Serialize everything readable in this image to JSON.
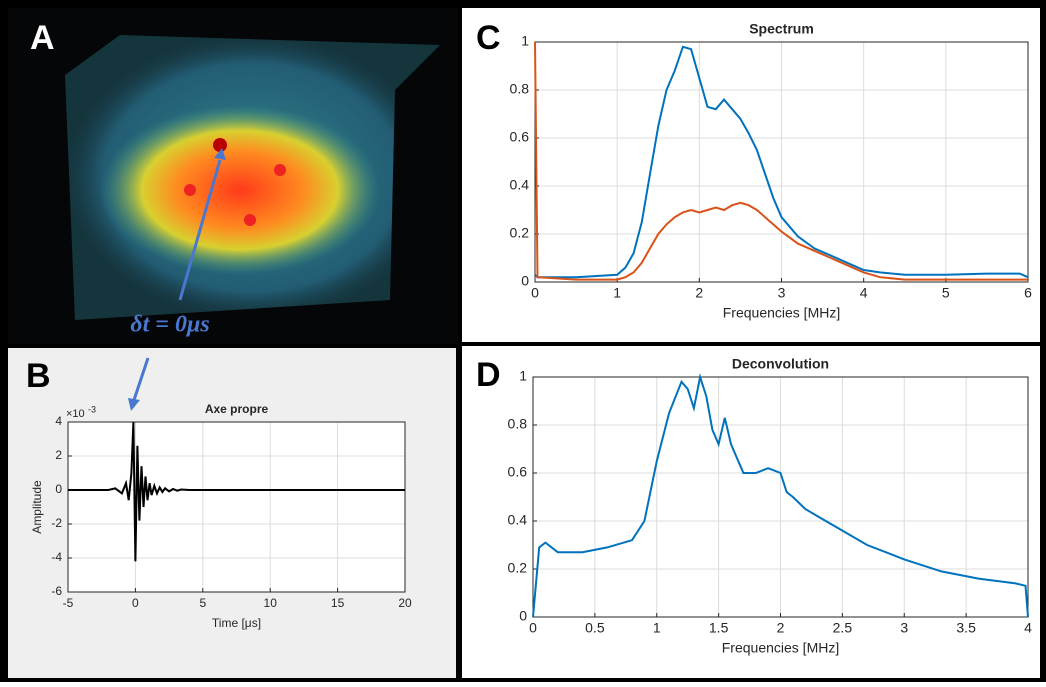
{
  "image_panel": {
    "label": "A",
    "annotation": "δt = 0μs"
  },
  "chart_data": [
    {
      "type": "line",
      "panel_label": "B",
      "title": "Axe propre",
      "x_label": "Time [μs]",
      "y_label": "Amplitude",
      "y_multiplier": {
        "base": "×10",
        "exponent": "-3"
      },
      "xlim": [
        -5,
        20
      ],
      "xticks": [
        -5,
        0,
        5,
        10,
        15,
        20
      ],
      "ylim": [
        -6,
        4
      ],
      "yticks": [
        -6,
        -4,
        -2,
        0,
        2,
        4
      ],
      "grid": true,
      "x": [
        -5,
        -2,
        -1.5,
        -1,
        -0.7,
        -0.5,
        -0.3,
        -0.15,
        0,
        0.15,
        0.3,
        0.45,
        0.6,
        0.75,
        0.9,
        1.05,
        1.2,
        1.4,
        1.6,
        1.8,
        2.0,
        2.2,
        2.5,
        2.8,
        3.1,
        3.4,
        4,
        5,
        20
      ],
      "series": [
        {
          "color": "#000000",
          "values": [
            0,
            0,
            0.1,
            -0.2,
            0.4,
            -0.6,
            1.0,
            4.0,
            -4.2,
            2.6,
            -1.8,
            1.4,
            -1.0,
            0.8,
            -0.6,
            0.4,
            -0.3,
            0.25,
            -0.2,
            0.15,
            -0.12,
            0.1,
            -0.08,
            0.06,
            -0.04,
            0.03,
            0,
            0,
            0
          ]
        }
      ]
    },
    {
      "type": "line",
      "panel_label": "C",
      "title": "Spectrum",
      "x_label": "Frequencies [MHz]",
      "xlim": [
        0,
        6
      ],
      "xticks": [
        0,
        1,
        2,
        3,
        4,
        5,
        6
      ],
      "ylim": [
        0,
        1
      ],
      "yticks": [
        0,
        0.2,
        0.4,
        0.6,
        0.8,
        1
      ],
      "grid": true,
      "x": [
        0,
        0.03,
        0.5,
        1,
        1.1,
        1.2,
        1.3,
        1.4,
        1.5,
        1.6,
        1.7,
        1.8,
        1.9,
        2.0,
        2.1,
        2.2,
        2.3,
        2.4,
        2.5,
        2.6,
        2.7,
        2.8,
        2.9,
        3.0,
        3.2,
        3.4,
        3.6,
        3.8,
        4.0,
        4.2,
        4.5,
        5,
        5.5,
        5.9,
        6
      ],
      "series": [
        {
          "color": "#0072bd",
          "values": [
            0.03,
            0.02,
            0.02,
            0.03,
            0.06,
            0.12,
            0.25,
            0.45,
            0.65,
            0.8,
            0.88,
            0.98,
            0.97,
            0.85,
            0.73,
            0.72,
            0.76,
            0.72,
            0.68,
            0.62,
            0.55,
            0.45,
            0.35,
            0.27,
            0.19,
            0.14,
            0.11,
            0.08,
            0.05,
            0.04,
            0.03,
            0.03,
            0.035,
            0.035,
            0.02
          ]
        },
        {
          "color": "#d95319",
          "values": [
            1,
            0.02,
            0.01,
            0.01,
            0.02,
            0.04,
            0.08,
            0.14,
            0.2,
            0.24,
            0.27,
            0.29,
            0.3,
            0.29,
            0.3,
            0.31,
            0.3,
            0.32,
            0.33,
            0.32,
            0.3,
            0.27,
            0.24,
            0.21,
            0.16,
            0.13,
            0.1,
            0.07,
            0.04,
            0.02,
            0.01,
            0.01,
            0.01,
            0.01,
            0.01
          ]
        }
      ]
    },
    {
      "type": "line",
      "panel_label": "D",
      "title": "Deconvolution",
      "x_label": "Frequencies [MHz]",
      "xlim": [
        0,
        4
      ],
      "xticks": [
        0,
        0.5,
        1,
        1.5,
        2,
        2.5,
        3,
        3.5,
        4
      ],
      "ylim": [
        0,
        1
      ],
      "yticks": [
        0,
        0.2,
        0.4,
        0.6,
        0.8,
        1
      ],
      "grid": true,
      "x": [
        0,
        0.05,
        0.1,
        0.2,
        0.4,
        0.6,
        0.8,
        0.9,
        1.0,
        1.1,
        1.2,
        1.25,
        1.3,
        1.35,
        1.4,
        1.45,
        1.5,
        1.55,
        1.6,
        1.7,
        1.8,
        1.9,
        2.0,
        2.05,
        2.1,
        2.2,
        2.3,
        2.5,
        2.7,
        3.0,
        3.3,
        3.6,
        3.9,
        3.98,
        4.0
      ],
      "series": [
        {
          "color": "#0072bd",
          "values": [
            0,
            0.29,
            0.31,
            0.27,
            0.27,
            0.29,
            0.32,
            0.4,
            0.65,
            0.85,
            0.98,
            0.95,
            0.87,
            1.0,
            0.92,
            0.78,
            0.72,
            0.83,
            0.72,
            0.6,
            0.6,
            0.62,
            0.6,
            0.52,
            0.5,
            0.45,
            0.42,
            0.36,
            0.3,
            0.24,
            0.19,
            0.16,
            0.14,
            0.13,
            0
          ]
        }
      ]
    }
  ]
}
